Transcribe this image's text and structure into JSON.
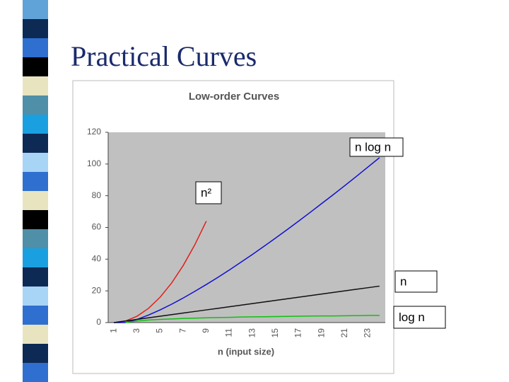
{
  "slide": {
    "title": "Practical Curves"
  },
  "chart_data": {
    "type": "line",
    "title": "Low-order Curves",
    "x_label": "n (input size)",
    "categories": [
      1,
      null,
      3,
      null,
      5,
      null,
      7,
      null,
      9,
      null,
      11,
      null,
      13,
      null,
      15,
      null,
      17,
      null,
      19,
      null,
      21,
      null,
      23,
      null
    ],
    "series": [
      {
        "name": "n²",
        "color": "#e0201b",
        "values": [
          0,
          1,
          4,
          9,
          16,
          25,
          36,
          49,
          64,
          null,
          null,
          null,
          null,
          null,
          null,
          null,
          null,
          null,
          null,
          null,
          null,
          null,
          null,
          null
        ]
      },
      {
        "name": "n log n",
        "color": "#1010d0",
        "values": [
          0,
          0,
          2,
          4.75,
          8,
          11.6,
          15.5,
          19.7,
          24,
          28.5,
          33.2,
          38.1,
          43,
          48.1,
          53.3,
          58.6,
          64,
          69.5,
          75.1,
          80.7,
          86.4,
          92.2,
          98.1,
          104
        ]
      },
      {
        "name": "n",
        "color": "#101010",
        "values": [
          0,
          1,
          2,
          3,
          4,
          5,
          6,
          7,
          8,
          9,
          10,
          11,
          12,
          13,
          14,
          15,
          16,
          17,
          18,
          19,
          20,
          21,
          22,
          23
        ]
      },
      {
        "name": "log n",
        "color": "#10c010",
        "values": [
          null,
          0,
          1,
          1.6,
          2,
          2.3,
          2.6,
          2.8,
          3,
          3.2,
          3.3,
          3.5,
          3.6,
          3.7,
          3.8,
          3.9,
          4,
          4.1,
          4.2,
          4.2,
          4.3,
          4.4,
          4.5,
          4.5
        ]
      }
    ],
    "ylim": [
      0,
      120
    ],
    "yticks": [
      0,
      20,
      40,
      60,
      80,
      100,
      120
    ],
    "grid": false
  }
}
